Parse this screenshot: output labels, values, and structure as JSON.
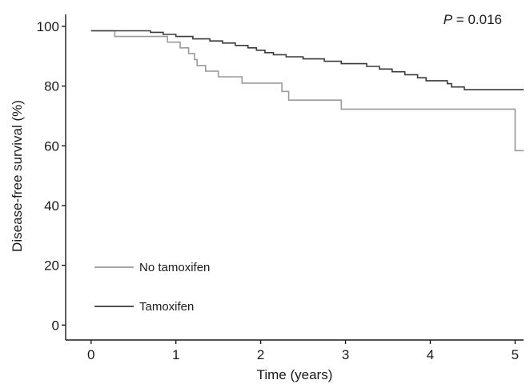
{
  "chart_data": {
    "type": "line",
    "subtype": "kaplan-meier survival curve",
    "title": "",
    "xlabel": "Time (years)",
    "ylabel": "Disease-free survival (%)",
    "xlim": [
      -0.3,
      5.1
    ],
    "ylim": [
      -5,
      104
    ],
    "x_ticks": [
      "0",
      "1",
      "2",
      "3",
      "4",
      "5"
    ],
    "y_ticks": [
      "0",
      "20",
      "40",
      "60",
      "80",
      "100"
    ],
    "grid": false,
    "legend_position": "bottom-left",
    "annotation": {
      "prefix": "P",
      "text": " = 0.016",
      "position": "top-right"
    },
    "series": [
      {
        "name": "No tamoxifen",
        "color": "#9a9a9a",
        "steps": [
          [
            0,
            98.5
          ],
          [
            0.28,
            96.6
          ],
          [
            0.9,
            94.7
          ],
          [
            1.05,
            92.8
          ],
          [
            1.15,
            90.9
          ],
          [
            1.22,
            88.9
          ],
          [
            1.25,
            86.9
          ],
          [
            1.35,
            85.0
          ],
          [
            1.5,
            83.1
          ],
          [
            1.78,
            81.0
          ],
          [
            2.25,
            78.2
          ],
          [
            2.33,
            75.3
          ],
          [
            2.95,
            72.3
          ],
          [
            5.0,
            58.4
          ],
          [
            5.1,
            58.4
          ]
        ]
      },
      {
        "name": "Tamoxifen",
        "color": "#3a3a3a",
        "steps": [
          [
            0,
            98.5
          ],
          [
            0.7,
            98.0
          ],
          [
            0.85,
            97.3
          ],
          [
            1.0,
            96.6
          ],
          [
            1.2,
            95.8
          ],
          [
            1.4,
            95.1
          ],
          [
            1.55,
            94.4
          ],
          [
            1.7,
            93.6
          ],
          [
            1.85,
            92.8
          ],
          [
            1.95,
            92.0
          ],
          [
            2.05,
            91.2
          ],
          [
            2.15,
            90.5
          ],
          [
            2.3,
            89.8
          ],
          [
            2.5,
            89.1
          ],
          [
            2.75,
            88.3
          ],
          [
            2.95,
            87.5
          ],
          [
            3.25,
            86.6
          ],
          [
            3.4,
            85.7
          ],
          [
            3.55,
            84.8
          ],
          [
            3.7,
            83.8
          ],
          [
            3.85,
            82.8
          ],
          [
            3.95,
            81.8
          ],
          [
            4.2,
            80.8
          ],
          [
            4.25,
            79.7
          ],
          [
            4.4,
            78.8
          ],
          [
            5.1,
            78.8
          ]
        ]
      }
    ]
  }
}
